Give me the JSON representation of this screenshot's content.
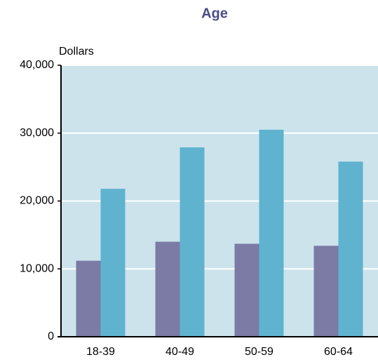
{
  "chart_data": {
    "type": "bar",
    "title": "Age",
    "y_label": "Dollars",
    "categories": [
      "18-39",
      "40-49",
      "50-59",
      "60-64"
    ],
    "series": [
      {
        "color": "#7b7ba5",
        "values": [
          11200,
          14000,
          13700,
          13400
        ]
      },
      {
        "color": "#5fb3cf",
        "values": [
          21800,
          27900,
          30500,
          25800
        ]
      }
    ],
    "ylim": [
      0,
      40000
    ],
    "yticks": [
      0,
      {
        "value": 10000,
        "label": "10,000"
      },
      {
        "value": 20000,
        "label": "20,000"
      },
      {
        "value": 30000,
        "label": "30,000"
      },
      {
        "value": 40000,
        "label": "40,000"
      }
    ],
    "grid": true
  }
}
